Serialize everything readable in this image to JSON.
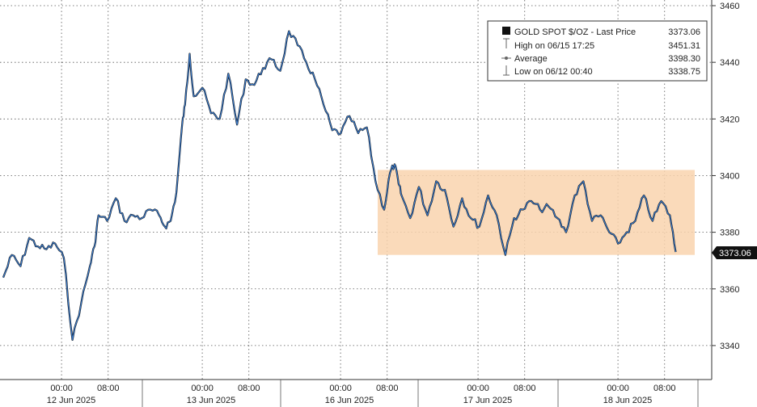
{
  "chart_data": {
    "type": "line",
    "title": "GOLD SPOT $/OZ - Last Price",
    "last_price_label": "3373.06",
    "ylim": [
      3328,
      3462
    ],
    "y_ticks": [
      3340,
      3360,
      3380,
      3400,
      3420,
      3440,
      3460
    ],
    "y_tick_labels": [
      "3340",
      "3360",
      "3380",
      "3400",
      "3420",
      "3440",
      "3460"
    ],
    "x_time_ticks": [
      "00:00",
      "08:00",
      "00:00",
      "08:00",
      "00:00",
      "08:00",
      "00:00",
      "08:00",
      "00:00",
      "08:00"
    ],
    "x_date_labels": [
      "12 Jun 2025",
      "13 Jun 2025",
      "16 Jun 2025",
      "17 Jun 2025",
      "18 Jun 2025"
    ],
    "legend": {
      "last_label": "GOLD SPOT $/OZ - Last Price",
      "last_value": "3373.06",
      "high_label": "High on 06/15 17:25",
      "high_value": "3451.31",
      "avg_label": "Average",
      "avg_value": "3398.30",
      "low_label": "Low on 06/12 00:40",
      "low_value": "3338.75"
    },
    "range_band": {
      "y_low": 3372,
      "y_high": 3402
    },
    "series": [
      {
        "name": "GOLD SPOT $/OZ - Last Price",
        "x": [
          0,
          1.5,
          3,
          4.5,
          6,
          7.5,
          9,
          10.5,
          12,
          13.5,
          15,
          15.8,
          16.5,
          18,
          19.5,
          21,
          22.5,
          24,
          25.5,
          27,
          28,
          29,
          30,
          31,
          31.5,
          32.3,
          33,
          34.5,
          36,
          37.5,
          39,
          40.5,
          42,
          43.5,
          45,
          46.5,
          48,
          49.5,
          51,
          52.5,
          54,
          55.5,
          57,
          58.5,
          60,
          61.5,
          63,
          64.5,
          66,
          67,
          67.8,
          68.5,
          69,
          70.5,
          72,
          73.5,
          75,
          76.5,
          78,
          79.5,
          81,
          82.5,
          84,
          85.5,
          87,
          88.5,
          90,
          91.5,
          93,
          94.5,
          96,
          97.5,
          99,
          100.5,
          102,
          103.5,
          105,
          106.5,
          108,
          109.5,
          111,
          112.5,
          114,
          115.5,
          116.5
        ],
        "y": [
          3364,
          3372,
          3368,
          3378,
          3375,
          3374,
          3376,
          3371,
          3342,
          3355,
          3368,
          3375,
          3386,
          3384,
          3392,
          3384,
          3386,
          3385,
          3388,
          3386,
          3382,
          3384,
          3394,
          3418,
          3425,
          3443,
          3428,
          3431,
          3422,
          3420,
          3436,
          3418,
          3434,
          3432,
          3438,
          3441,
          3437,
          3451,
          3446,
          3440,
          3434,
          3425,
          3416,
          3415,
          3421,
          3415,
          3417,
          3398,
          3388,
          3401,
          3404,
          3397,
          3393,
          3385,
          3396,
          3386,
          3398,
          3395,
          3382,
          3392,
          3385,
          3382,
          3393,
          3386,
          3372,
          3385,
          3388,
          3391,
          3388,
          3389,
          3385,
          3380,
          3393,
          3398,
          3384,
          3386,
          3380,
          3376,
          3380,
          3384,
          3393,
          3384,
          3391,
          3386,
          3373.06
        ]
      }
    ]
  }
}
